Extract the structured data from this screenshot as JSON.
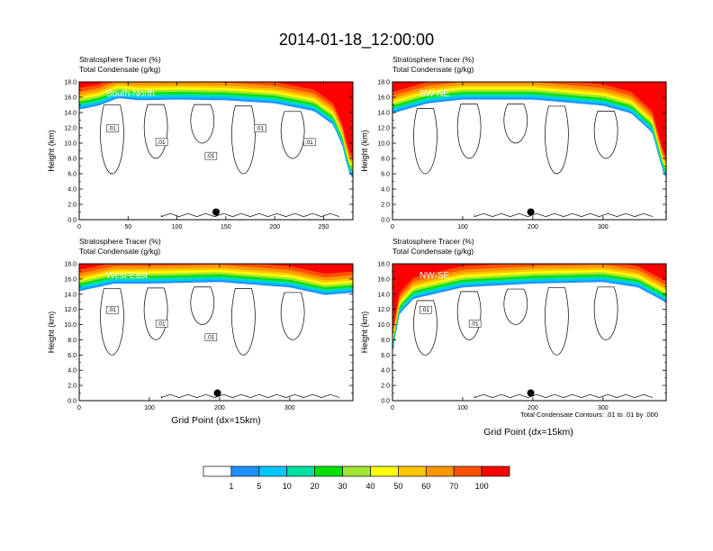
{
  "title": "2014-01-18_12:00:00",
  "field_titles": [
    "Stratosphere Tracer   (%)",
    "Total Condensate   (g/kg)"
  ],
  "ylabel": "Height (km)",
  "xlabel": "Grid Point (dx=15km)",
  "contour_note": "Total Condensate Contours: .01 to .01 by .000",
  "contour_label": ".01",
  "y_ticks": [
    "0.0",
    "2.0",
    "4.0",
    "6.0",
    "8.0",
    "10.0",
    "12.0",
    "14.0",
    "16.0",
    "18.0"
  ],
  "colorbar": {
    "labels": [
      "1",
      "5",
      "10",
      "20",
      "30",
      "40",
      "50",
      "60",
      "70",
      "100"
    ],
    "colors": [
      "#ffffff",
      "#1e90ff",
      "#00c8ff",
      "#00e0a0",
      "#00e000",
      "#a0e632",
      "#ffff00",
      "#ffc800",
      "#ff9600",
      "#ff5000",
      "#ff0000"
    ]
  },
  "chart_data": [
    {
      "type": "contour",
      "name": "South-North",
      "xlim": [
        0,
        280
      ],
      "ylim": [
        0,
        18
      ],
      "x_ticks": [
        0,
        50,
        100,
        150,
        200,
        250
      ],
      "tracer_top_km": 16.5,
      "tropopause_profile": [
        [
          0,
          15.0
        ],
        [
          20,
          15.5
        ],
        [
          40,
          16.5
        ],
        [
          60,
          16.2
        ],
        [
          100,
          16.3
        ],
        [
          150,
          16.2
        ],
        [
          200,
          15.8
        ],
        [
          240,
          14.8
        ],
        [
          260,
          13.0
        ],
        [
          270,
          10.0
        ],
        [
          275,
          7.0
        ],
        [
          280,
          6.0
        ]
      ],
      "surface_marker": {
        "x": 140,
        "y": 1.0
      },
      "contour_label_count": 5
    },
    {
      "type": "contour",
      "name": "SW-NE",
      "xlim": [
        0,
        390
      ],
      "ylim": [
        0,
        18
      ],
      "x_ticks": [
        0,
        100,
        200,
        300
      ],
      "tracer_top_km": 16.5,
      "tropopause_profile": [
        [
          0,
          14.5
        ],
        [
          50,
          15.8
        ],
        [
          100,
          16.3
        ],
        [
          200,
          16.3
        ],
        [
          300,
          15.5
        ],
        [
          340,
          14.5
        ],
        [
          370,
          12.0
        ],
        [
          385,
          7.0
        ],
        [
          390,
          6.0
        ]
      ],
      "surface_marker": {
        "x": 197,
        "y": 1.0
      },
      "contour_label_count": 0
    },
    {
      "type": "contour",
      "name": "West-East",
      "xlim": [
        0,
        390
      ],
      "ylim": [
        0,
        18
      ],
      "x_ticks": [
        0,
        100,
        200,
        300
      ],
      "tracer_top_km": 16.5,
      "tropopause_profile": [
        [
          0,
          15.0
        ],
        [
          50,
          16.0
        ],
        [
          100,
          16.0
        ],
        [
          200,
          16.2
        ],
        [
          300,
          15.5
        ],
        [
          350,
          14.5
        ],
        [
          390,
          14.8
        ]
      ],
      "surface_marker": {
        "x": 197,
        "y": 1.0
      },
      "contour_label_count": 3
    },
    {
      "type": "contour",
      "name": "NW-SE",
      "xlim": [
        0,
        390
      ],
      "ylim": [
        0,
        18
      ],
      "x_ticks": [
        0,
        100,
        200,
        300
      ],
      "tracer_top_km": 16.5,
      "tropopause_profile": [
        [
          0,
          7.0
        ],
        [
          10,
          12.0
        ],
        [
          30,
          14.0
        ],
        [
          100,
          15.5
        ],
        [
          200,
          16.0
        ],
        [
          300,
          16.2
        ],
        [
          350,
          15.5
        ],
        [
          390,
          13.5
        ]
      ],
      "surface_marker": {
        "x": 197,
        "y": 1.0
      },
      "contour_label_count": 2
    }
  ]
}
